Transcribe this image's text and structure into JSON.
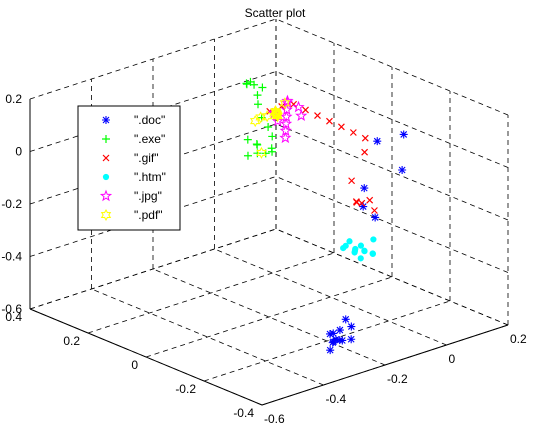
{
  "chart_data": {
    "type": "scatter",
    "title": "Scatter plot",
    "xlabel": "",
    "ylabel": "",
    "zlabel": "",
    "xlim": [
      -0.4,
      0.4
    ],
    "ylim": [
      -0.6,
      0.2
    ],
    "zlim": [
      -0.6,
      0.2
    ],
    "x_ticks": [
      "-0.4",
      "-0.2",
      "0",
      "0.2",
      "0.4"
    ],
    "y_ticks": [
      "-0.6",
      "-0.4",
      "-0.2",
      "0",
      "0.2"
    ],
    "z_ticks": [
      "-0.6",
      "-0.4",
      "-0.2",
      "0",
      "0.2"
    ],
    "grid": true,
    "legend_position": "top-left",
    "series": [
      {
        "name": "\".doc\"",
        "marker": "*",
        "color": "#0000ff",
        "points": [
          [
            -0.38,
            -0.32,
            -0.47
          ],
          [
            -0.39,
            -0.35,
            -0.45
          ],
          [
            -0.35,
            -0.3,
            -0.49
          ],
          [
            -0.37,
            -0.34,
            -0.44
          ],
          [
            -0.4,
            -0.31,
            -0.46
          ],
          [
            -0.36,
            -0.33,
            -0.48
          ],
          [
            -0.38,
            -0.36,
            -0.43
          ],
          [
            -0.34,
            -0.29,
            -0.46
          ],
          [
            -0.39,
            -0.3,
            -0.42
          ],
          [
            -0.37,
            -0.35,
            -0.5
          ],
          [
            -0.36,
            -0.29,
            -0.41
          ],
          [
            -0.4,
            -0.37,
            -0.45
          ],
          [
            -0.3,
            -0.05,
            0.04
          ],
          [
            -0.24,
            -0.12,
            -0.1
          ],
          [
            -0.21,
            0.04,
            0.1
          ],
          [
            -0.26,
            -0.1,
            -0.14
          ],
          [
            -0.14,
            0.02,
            0.05
          ],
          [
            -0.18,
            -0.06,
            -0.08
          ]
        ]
      },
      {
        "name": "\".exe\"",
        "marker": "+",
        "color": "#00ff00",
        "points": [
          [
            0.38,
            0.12,
            -0.24
          ],
          [
            0.36,
            0.1,
            -0.22
          ],
          [
            0.35,
            0.14,
            -0.26
          ],
          [
            0.37,
            0.08,
            -0.2
          ],
          [
            0.39,
            0.13,
            -0.28
          ],
          [
            0.34,
            0.11,
            -0.25
          ],
          [
            0.36,
            0.15,
            -0.21
          ],
          [
            0.38,
            0.09,
            -0.27
          ],
          [
            0.33,
            0.12,
            -0.23
          ],
          [
            0.3,
            0.08,
            -0.12
          ],
          [
            0.28,
            0.04,
            -0.06
          ],
          [
            0.25,
            0.0,
            0.02
          ],
          [
            0.22,
            -0.03,
            0.08
          ],
          [
            0.2,
            -0.06,
            0.14
          ],
          [
            0.17,
            -0.1,
            0.18
          ],
          [
            0.14,
            -0.14,
            0.2
          ],
          [
            0.12,
            -0.16,
            0.22
          ],
          [
            0.15,
            -0.08,
            0.16
          ]
        ]
      },
      {
        "name": "\".gif\"",
        "marker": "x",
        "color": "#ff0000",
        "points": [
          [
            -0.02,
            -0.1,
            0.16
          ],
          [
            0.0,
            -0.12,
            0.18
          ],
          [
            -0.04,
            -0.08,
            0.14
          ],
          [
            0.02,
            -0.14,
            0.17
          ],
          [
            -0.06,
            -0.06,
            0.12
          ],
          [
            0.04,
            -0.16,
            0.15
          ],
          [
            -0.08,
            -0.04,
            0.1
          ],
          [
            -0.1,
            -0.02,
            0.08
          ],
          [
            -0.2,
            -0.12,
            -0.02
          ],
          [
            -0.26,
            -0.16,
            -0.06
          ],
          [
            -0.28,
            -0.18,
            -0.04
          ],
          [
            -0.32,
            -0.2,
            -0.02
          ],
          [
            -0.22,
            -0.08,
            -0.1
          ],
          [
            -0.3,
            -0.14,
            -0.08
          ],
          [
            -0.12,
            0.0,
            0.06
          ],
          [
            -0.16,
            -0.04,
            0.04
          ]
        ]
      },
      {
        "name": "\".htm\"",
        "marker": "o",
        "color": "#00ffff",
        "points": [
          [
            -0.36,
            -0.26,
            -0.16
          ],
          [
            -0.34,
            -0.24,
            -0.17
          ],
          [
            -0.38,
            -0.28,
            -0.15
          ],
          [
            -0.35,
            -0.22,
            -0.18
          ],
          [
            -0.37,
            -0.25,
            -0.14
          ],
          [
            -0.33,
            -0.27,
            -0.16
          ],
          [
            -0.39,
            -0.23,
            -0.17
          ],
          [
            -0.36,
            -0.29,
            -0.13
          ],
          [
            -0.34,
            -0.21,
            -0.19
          ],
          [
            -0.38,
            -0.26,
            -0.18
          ],
          [
            -0.32,
            -0.24,
            -0.15
          ],
          [
            -0.4,
            -0.24,
            -0.16
          ],
          [
            -0.36,
            -0.2,
            -0.14
          ]
        ]
      },
      {
        "name": "\".jpg\"",
        "marker": "pentagram",
        "color": "#ff00ff",
        "points": [
          [
            -0.04,
            -0.18,
            0.2
          ],
          [
            -0.06,
            -0.2,
            0.19
          ],
          [
            -0.02,
            -0.16,
            0.21
          ],
          [
            -0.08,
            -0.22,
            0.18
          ],
          [
            0.0,
            -0.14,
            0.2
          ],
          [
            -0.1,
            -0.24,
            0.17
          ],
          [
            -0.03,
            -0.2,
            0.16
          ],
          [
            -0.07,
            -0.17,
            0.22
          ],
          [
            -0.05,
            -0.23,
            0.21
          ],
          [
            -0.01,
            -0.19,
            0.18
          ],
          [
            -0.09,
            -0.18,
            0.2
          ],
          [
            -0.12,
            -0.26,
            0.16
          ]
        ]
      },
      {
        "name": "\".pdf\"",
        "marker": "hexagram",
        "color": "#ffff00",
        "points": [
          [
            0.04,
            -0.14,
            0.14
          ],
          [
            0.06,
            -0.12,
            0.12
          ],
          [
            0.02,
            -0.16,
            0.16
          ],
          [
            0.08,
            -0.1,
            0.1
          ],
          [
            0.05,
            -0.18,
            0.13
          ],
          [
            0.1,
            -0.08,
            0.08
          ],
          [
            0.07,
            -0.14,
            0.11
          ],
          [
            0.12,
            -0.06,
            0.06
          ],
          [
            0.03,
            -0.12,
            0.17
          ],
          [
            0.09,
            -0.16,
            0.09
          ],
          [
            -0.08,
            -0.3,
            0.1
          ],
          [
            0.14,
            -0.04,
            0.04
          ]
        ]
      }
    ]
  }
}
